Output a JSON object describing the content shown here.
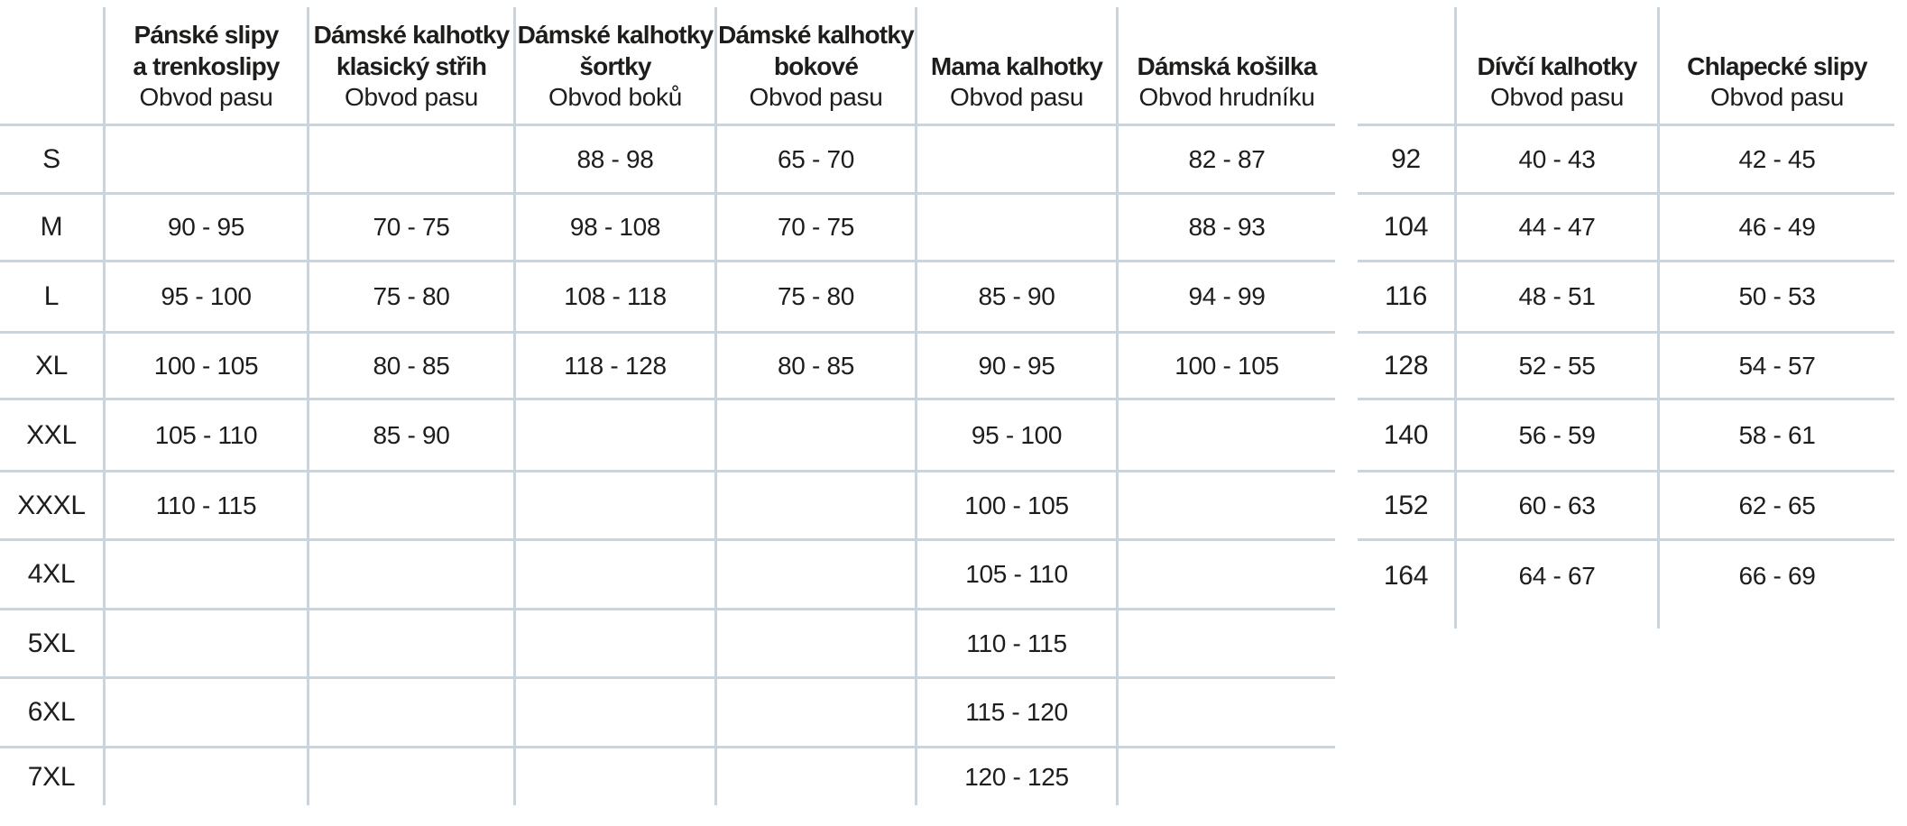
{
  "colors": {
    "background": "#ffffff",
    "grid_line": "#c9d4dd",
    "text": "#1d1d1b"
  },
  "left_table": {
    "header": {
      "columns": [
        {
          "title_lines": [
            "Pánské slipy",
            "a trenkoslipy"
          ],
          "subtitle": "Obvod pasu"
        },
        {
          "title_lines": [
            "Dámské kalhotky",
            "klasický střih"
          ],
          "subtitle": "Obvod pasu"
        },
        {
          "title_lines": [
            "Dámské kalhotky",
            "šortky"
          ],
          "subtitle": "Obvod boků"
        },
        {
          "title_lines": [
            "Dámské kalhotky",
            "bokové"
          ],
          "subtitle": "Obvod pasu"
        },
        {
          "title_lines": [
            "Mama kalhotky"
          ],
          "subtitle": "Obvod pasu"
        },
        {
          "title_lines": [
            "Dámská košilka"
          ],
          "subtitle": "Obvod hrudníku"
        }
      ]
    },
    "rows": [
      {
        "size": "S",
        "values": [
          "",
          "",
          "88 - 98",
          "65 - 70",
          "",
          "82 - 87"
        ]
      },
      {
        "size": "M",
        "values": [
          "90 - 95",
          "70 - 75",
          "98 - 108",
          "70 - 75",
          "",
          "88 - 93"
        ]
      },
      {
        "size": "L",
        "values": [
          "95 - 100",
          "75 - 80",
          "108 - 118",
          "75 - 80",
          "85 - 90",
          "94 - 99"
        ]
      },
      {
        "size": "XL",
        "values": [
          "100 - 105",
          "80 - 85",
          "118 - 128",
          "80 - 85",
          "90 - 95",
          "100 - 105"
        ]
      },
      {
        "size": "XXL",
        "values": [
          "105 - 110",
          "85 - 90",
          "",
          "",
          "95 - 100",
          ""
        ]
      },
      {
        "size": "XXXL",
        "values": [
          "110 - 115",
          "",
          "",
          "",
          "100 - 105",
          ""
        ]
      },
      {
        "size": "4XL",
        "values": [
          "",
          "",
          "",
          "",
          "105 - 110",
          ""
        ]
      },
      {
        "size": "5XL",
        "values": [
          "",
          "",
          "",
          "",
          "110 - 115",
          ""
        ]
      },
      {
        "size": "6XL",
        "values": [
          "",
          "",
          "",
          "",
          "115 - 120",
          ""
        ]
      },
      {
        "size": "7XL",
        "values": [
          "",
          "",
          "",
          "",
          "120 - 125",
          ""
        ]
      }
    ]
  },
  "right_table": {
    "header": {
      "columns": [
        {
          "title_lines": [
            "Dívčí kalhotky"
          ],
          "subtitle": "Obvod pasu"
        },
        {
          "title_lines": [
            "Chlapecké slipy"
          ],
          "subtitle": "Obvod pasu"
        }
      ]
    },
    "rows": [
      {
        "size": "92",
        "values": [
          "40 - 43",
          "42 - 45"
        ]
      },
      {
        "size": "104",
        "values": [
          "44 - 47",
          "46 - 49"
        ]
      },
      {
        "size": "116",
        "values": [
          "48 - 51",
          "50 - 53"
        ]
      },
      {
        "size": "128",
        "values": [
          "52 - 55",
          "54 - 57"
        ]
      },
      {
        "size": "140",
        "values": [
          "56 - 59",
          "58 - 61"
        ]
      },
      {
        "size": "152",
        "values": [
          "60 - 63",
          "62 - 65"
        ]
      },
      {
        "size": "164",
        "values": [
          "64 - 67",
          "66 - 69"
        ]
      }
    ]
  }
}
